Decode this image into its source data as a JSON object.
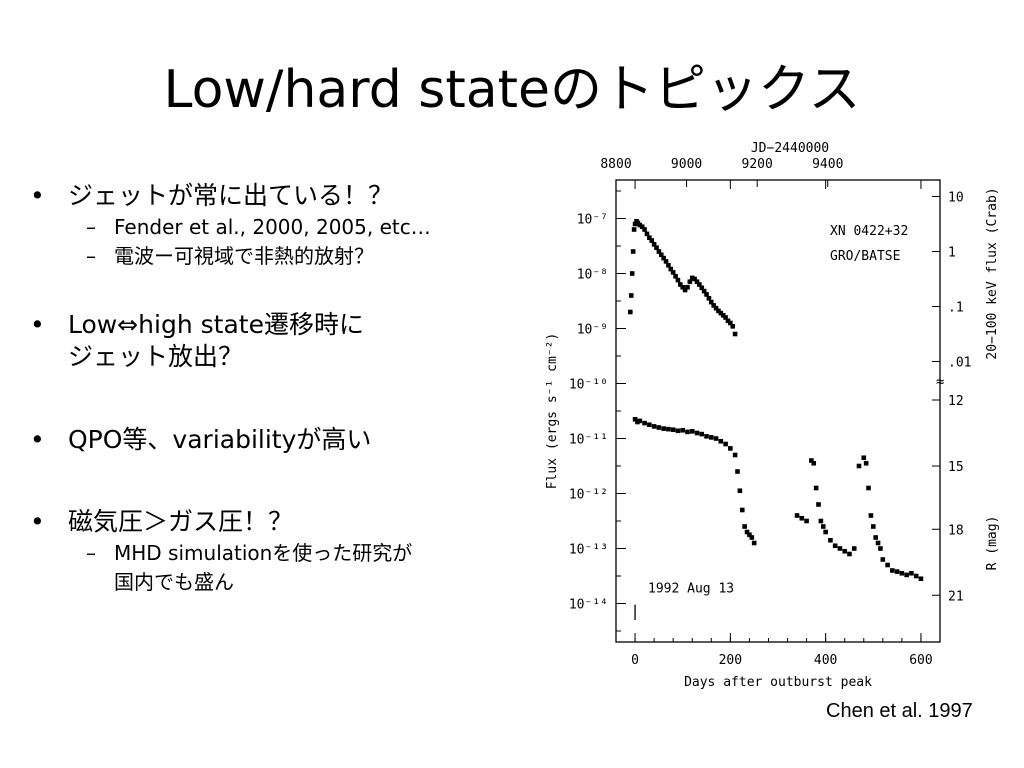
{
  "slide": {
    "title": "Low/hard stateのトピックス",
    "caption": "Chen et al. 1997"
  },
  "bullets": [
    {
      "text": "ジェットが常に出ている！？",
      "subs": [
        "Fender et al., 2000, 2005, etc…",
        "電波ー可視域で非熱的放射？"
      ]
    },
    {
      "text": "Low⇔high state遷移時に",
      "text2": "ジェット放出？"
    },
    {
      "text": "QPO等、variabilityが高い"
    },
    {
      "text": "磁気圧＞ガス圧！？",
      "subs": [
        "MHD simulationを使った研究が",
        "国内でも盛ん"
      ]
    }
  ],
  "bullet_marker": "•",
  "sub_marker": "–",
  "chart_data": {
    "type": "scatter",
    "xlabel": "Days after outburst peak",
    "x_ticks": [
      0,
      200,
      400,
      600
    ],
    "xlim": [
      -40,
      640
    ],
    "top_axis_label": "JD−2440000",
    "top_ticks": [
      8800,
      9000,
      9200,
      9400
    ],
    "ylabel": "Flux (ergs s⁻¹ cm⁻²)",
    "ylim_log10": [
      -14.7,
      -6.3
    ],
    "y_ticks": [
      {
        "exp": -7,
        "label": "10⁻⁷"
      },
      {
        "exp": -8,
        "label": "10⁻⁸"
      },
      {
        "exp": -9,
        "label": "10⁻⁹"
      },
      {
        "exp": -10,
        "label": "10⁻¹⁰"
      },
      {
        "exp": -11,
        "label": "10⁻¹¹"
      },
      {
        "exp": -12,
        "label": "10⁻¹²"
      },
      {
        "exp": -13,
        "label": "10⁻¹³"
      },
      {
        "exp": -14,
        "label": "10⁻¹⁴"
      }
    ],
    "right_label_top": "20−100 keV flux (Crab)",
    "right_ticks_top": [
      {
        "exp": -6.6,
        "label": "10"
      },
      {
        "exp": -7.6,
        "label": "1"
      },
      {
        "exp": -8.6,
        "label": ".1"
      },
      {
        "exp": -9.6,
        "label": ".01"
      }
    ],
    "right_label_bottom": "R (mag)",
    "right_ticks_bottom": [
      {
        "exp": -10.3,
        "label": "12"
      },
      {
        "exp": -11.5,
        "label": "15"
      },
      {
        "exp": -12.65,
        "label": "18"
      },
      {
        "exp": -13.85,
        "label": "21"
      }
    ],
    "annotations": [
      "XN 0422+32",
      "GRO/BATSE",
      "1992 Aug 13"
    ],
    "series": [
      {
        "x": [
          -10,
          -8,
          -6,
          -4,
          -2,
          0,
          3,
          6,
          10,
          15,
          20,
          25,
          30,
          35,
          40,
          45,
          50,
          55,
          60,
          65,
          70,
          75,
          80,
          85,
          90,
          95,
          100,
          105,
          110,
          115,
          120,
          125,
          130,
          135,
          140,
          145,
          150,
          155,
          160,
          165,
          170,
          175,
          180,
          185,
          190,
          195,
          200,
          205,
          210
        ],
        "y": [
          -8.7,
          -8.4,
          -8.0,
          -7.6,
          -7.2,
          -7.1,
          -7.05,
          -7.08,
          -7.12,
          -7.15,
          -7.2,
          -7.28,
          -7.35,
          -7.4,
          -7.47,
          -7.53,
          -7.6,
          -7.66,
          -7.72,
          -7.78,
          -7.85,
          -7.92,
          -7.98,
          -8.05,
          -8.12,
          -8.2,
          -8.25,
          -8.3,
          -8.25,
          -8.15,
          -8.08,
          -8.1,
          -8.15,
          -8.2,
          -8.26,
          -8.32,
          -8.38,
          -8.45,
          -8.52,
          -8.58,
          -8.63,
          -8.68,
          -8.72,
          -8.76,
          -8.8,
          -8.86,
          -8.9,
          -8.96,
          -9.1
        ]
      },
      {
        "x": [
          0,
          5,
          10,
          20,
          30,
          40,
          50,
          60,
          70,
          80,
          90,
          100,
          110,
          120,
          130,
          140,
          150,
          160,
          170,
          180,
          190,
          200,
          210,
          215,
          220,
          225,
          230,
          235,
          240,
          245,
          250
        ],
        "y": [
          -10.65,
          -10.7,
          -10.68,
          -10.72,
          -10.75,
          -10.78,
          -10.8,
          -10.82,
          -10.83,
          -10.84,
          -10.86,
          -10.85,
          -10.88,
          -10.87,
          -10.9,
          -10.92,
          -10.96,
          -10.98,
          -11.0,
          -11.05,
          -11.1,
          -11.18,
          -11.3,
          -11.6,
          -11.95,
          -12.3,
          -12.6,
          -12.7,
          -12.75,
          -12.8,
          -12.9
        ]
      },
      {
        "x": [
          340,
          350,
          360,
          370,
          375,
          380,
          385,
          390,
          395,
          400,
          410,
          420,
          430,
          440,
          450,
          460,
          470,
          480,
          485,
          490,
          495,
          500,
          505,
          510,
          515,
          520,
          530,
          540,
          550,
          560,
          570,
          580,
          590,
          600
        ],
        "y": [
          -12.4,
          -12.45,
          -12.5,
          -11.4,
          -11.45,
          -11.9,
          -12.2,
          -12.5,
          -12.6,
          -12.7,
          -12.85,
          -12.95,
          -13.0,
          -13.05,
          -13.1,
          -13.0,
          -11.5,
          -11.35,
          -11.45,
          -11.9,
          -12.4,
          -12.6,
          -12.8,
          -12.9,
          -13.0,
          -13.2,
          -13.3,
          -13.4,
          -13.42,
          -13.45,
          -13.48,
          -13.45,
          -13.5,
          -13.55
        ]
      }
    ]
  }
}
